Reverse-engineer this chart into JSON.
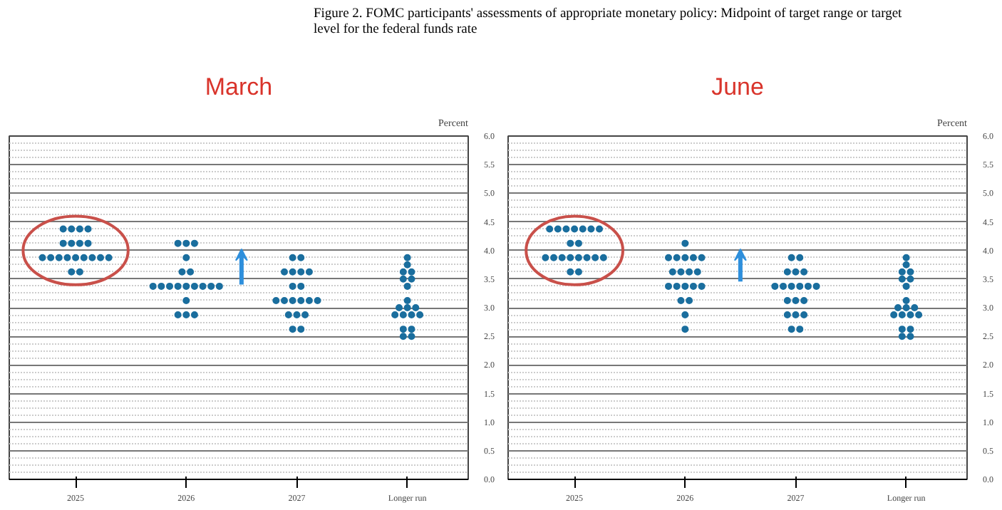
{
  "chart_data": [
    {
      "type": "scatter",
      "title": "Figure 2.  FOMC participants' assessments of appropriate monetary policy: Midpoint of target range or target level for the federal funds rate",
      "subtitle": "March",
      "ylabel": "Percent",
      "categories": [
        "2025",
        "2026",
        "2027",
        "Longer run"
      ],
      "series": [
        {
          "color": "#1a6e9e",
          "values": [
            4.375,
            4.125,
            3.875,
            3.875
          ]
        },
        {
          "color": "#1a6e9e",
          "values": [
            4.375,
            4.125,
            3.875,
            3.75
          ]
        },
        {
          "color": "#1a6e9e",
          "values": [
            4.375,
            4.125,
            3.625,
            3.625
          ]
        },
        {
          "color": "#1a6e9e",
          "values": [
            4.375,
            3.875,
            3.625,
            3.625
          ]
        },
        {
          "color": "#1a6e9e",
          "values": [
            4.125,
            3.625,
            3.625,
            3.5
          ]
        },
        {
          "color": "#1a6e9e",
          "values": [
            4.125,
            3.625,
            3.625,
            3.5
          ]
        },
        {
          "color": "#1a6e9e",
          "values": [
            4.125,
            3.375,
            3.375,
            3.375
          ]
        },
        {
          "color": "#1a6e9e",
          "values": [
            4.125,
            3.375,
            3.375,
            3.125
          ]
        },
        {
          "color": "#1a6e9e",
          "values": [
            3.875,
            3.375,
            3.125,
            3.0
          ]
        },
        {
          "color": "#1a6e9e",
          "values": [
            3.875,
            3.375,
            3.125,
            3.0
          ]
        },
        {
          "color": "#1a6e9e",
          "values": [
            3.875,
            3.375,
            3.125,
            3.0
          ]
        },
        {
          "color": "#1a6e9e",
          "values": [
            3.875,
            3.375,
            3.125,
            2.875
          ]
        },
        {
          "color": "#1a6e9e",
          "values": [
            3.875,
            3.375,
            3.125,
            2.875
          ]
        },
        {
          "color": "#1a6e9e",
          "values": [
            3.875,
            3.375,
            3.125,
            2.875
          ]
        },
        {
          "color": "#1a6e9e",
          "values": [
            3.875,
            3.375,
            2.875,
            2.875
          ]
        },
        {
          "color": "#1a6e9e",
          "values": [
            3.875,
            3.125,
            2.875,
            2.625
          ]
        },
        {
          "color": "#1a6e9e",
          "values": [
            3.875,
            2.875,
            2.875,
            2.625
          ]
        },
        {
          "color": "#1a6e9e",
          "values": [
            3.625,
            2.875,
            2.625,
            2.5
          ]
        },
        {
          "color": "#1a6e9e",
          "values": [
            3.625,
            2.875,
            2.625,
            2.5
          ]
        }
      ],
      "ylim": [
        0,
        6
      ],
      "yticks": [
        {
          "value": 0,
          "label": "0.0"
        },
        {
          "value": 0.5,
          "label": "0.5"
        },
        {
          "value": 1,
          "label": "1.0"
        },
        {
          "value": 1.5,
          "label": "1.5"
        },
        {
          "value": 2,
          "label": "2.0"
        },
        {
          "value": 2.5,
          "label": "2.5"
        },
        {
          "value": 3,
          "label": "3.0"
        },
        {
          "value": 3.5,
          "label": "3.5"
        },
        {
          "value": 4,
          "label": "4.0"
        },
        {
          "value": 4.5,
          "label": "4.5"
        },
        {
          "value": 5,
          "label": "5.0"
        },
        {
          "value": 5.5,
          "label": "5.5"
        },
        {
          "value": 6,
          "label": "6.0"
        }
      ],
      "grid": "y",
      "marker": "circle"
    },
    {
      "type": "scatter",
      "subtitle": "June",
      "ylabel": "Percent",
      "categories": [
        "2025",
        "2026",
        "2027",
        "Longer run"
      ],
      "series": [
        {
          "color": "#1a6e9e",
          "values": [
            4.375,
            4.125,
            3.875,
            3.875
          ]
        },
        {
          "color": "#1a6e9e",
          "values": [
            4.375,
            3.875,
            3.875,
            3.75
          ]
        },
        {
          "color": "#1a6e9e",
          "values": [
            4.375,
            3.875,
            3.625,
            3.625
          ]
        },
        {
          "color": "#1a6e9e",
          "values": [
            4.375,
            3.875,
            3.625,
            3.625
          ]
        },
        {
          "color": "#1a6e9e",
          "values": [
            4.375,
            3.875,
            3.625,
            3.5
          ]
        },
        {
          "color": "#1a6e9e",
          "values": [
            4.375,
            3.875,
            3.375,
            3.5
          ]
        },
        {
          "color": "#1a6e9e",
          "values": [
            4.375,
            3.625,
            3.375,
            3.375
          ]
        },
        {
          "color": "#1a6e9e",
          "values": [
            4.125,
            3.625,
            3.375,
            3.125
          ]
        },
        {
          "color": "#1a6e9e",
          "values": [
            4.125,
            3.625,
            3.375,
            3.0
          ]
        },
        {
          "color": "#1a6e9e",
          "values": [
            3.875,
            3.625,
            3.375,
            3.0
          ]
        },
        {
          "color": "#1a6e9e",
          "values": [
            3.875,
            3.375,
            3.375,
            3.0
          ]
        },
        {
          "color": "#1a6e9e",
          "values": [
            3.875,
            3.375,
            3.125,
            2.875
          ]
        },
        {
          "color": "#1a6e9e",
          "values": [
            3.875,
            3.375,
            3.125,
            2.875
          ]
        },
        {
          "color": "#1a6e9e",
          "values": [
            3.875,
            3.375,
            3.125,
            2.875
          ]
        },
        {
          "color": "#1a6e9e",
          "values": [
            3.875,
            3.375,
            2.875,
            2.875
          ]
        },
        {
          "color": "#1a6e9e",
          "values": [
            3.875,
            3.125,
            2.875,
            2.625
          ]
        },
        {
          "color": "#1a6e9e",
          "values": [
            3.875,
            3.125,
            2.875,
            2.625
          ]
        },
        {
          "color": "#1a6e9e",
          "values": [
            3.625,
            2.875,
            2.625,
            2.5
          ]
        },
        {
          "color": "#1a6e9e",
          "values": [
            3.625,
            2.625,
            2.625,
            2.5
          ]
        }
      ],
      "ylim": [
        0,
        6
      ],
      "yticks": [
        {
          "value": 0,
          "label": "0.0"
        },
        {
          "value": 0.5,
          "label": "0.5"
        },
        {
          "value": 1,
          "label": "1.0"
        },
        {
          "value": 1.5,
          "label": "1.5"
        },
        {
          "value": 2,
          "label": "2.0"
        },
        {
          "value": 2.5,
          "label": "2.5"
        },
        {
          "value": 3,
          "label": "3.0"
        },
        {
          "value": 3.5,
          "label": "3.5"
        },
        {
          "value": 4,
          "label": "4.0"
        },
        {
          "value": 4.5,
          "label": "4.5"
        },
        {
          "value": 5,
          "label": "5.0"
        },
        {
          "value": 5.5,
          "label": "5.5"
        },
        {
          "value": 6,
          "label": "6.0"
        }
      ],
      "grid": "y",
      "marker": "circle"
    }
  ]
}
